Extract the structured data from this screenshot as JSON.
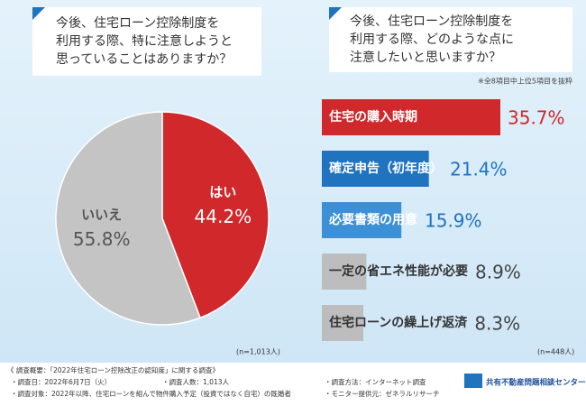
{
  "chart_data": [
    {
      "type": "pie",
      "title": "今後、住宅ローン控除制度を\n利用する際、特に注意しようと\n思っていることはありますか？",
      "categories": [
        "はい",
        "いいえ"
      ],
      "values": [
        44.2,
        55.8
      ],
      "value_labels": [
        "44.2%",
        "55.8%"
      ],
      "colors": [
        "#d0282b",
        "#c4c4c4"
      ],
      "note": "(n=1,013人)"
    },
    {
      "type": "bar",
      "title": "今後、住宅ローン控除制度を\n利用する際、どのような点に\n注意したいと思いますか？",
      "subtitle": "※全8項目中上位5項目を抜粋",
      "categories": [
        "住宅の購入時期",
        "確定申告（初年度）",
        "必要書類の用意",
        "一定の省エネ性能が必要",
        "住宅ローンの繰上げ返済"
      ],
      "values": [
        35.7,
        21.4,
        15.9,
        8.9,
        8.3
      ],
      "value_labels": [
        "35.7%",
        "21.4%",
        "15.9%",
        "8.9%",
        "8.3%"
      ],
      "colors": [
        "#d0282b",
        "#1f73bf",
        "#3d8fd6",
        "#bdbdbd",
        "#bdbdbd"
      ],
      "label_colors": [
        "#ffffff",
        "#ffffff",
        "#ffffff",
        "#333333",
        "#333333"
      ],
      "value_label_colors": [
        "#d0282b",
        "#1f73bf",
        "#1f73bf",
        "#444444",
        "#444444"
      ],
      "note": "(n=448人)"
    }
  ],
  "survey": {
    "heading": "《 調査概要：「2022年住宅ローン控除改正の認知度」に関する調査》",
    "items": [
      "・調査日：2022年6月7日（火）",
      "・調査人数：1,013人",
      "・調査方法：インターネット調査",
      "・調査対象：2022年以降、住宅ローンを組んで物件購入予定（投資ではなく自宅）の既婚者",
      "・モニター提供元：ゼネラルリサーチ"
    ],
    "logo": "共有不動産問題相談センター"
  }
}
